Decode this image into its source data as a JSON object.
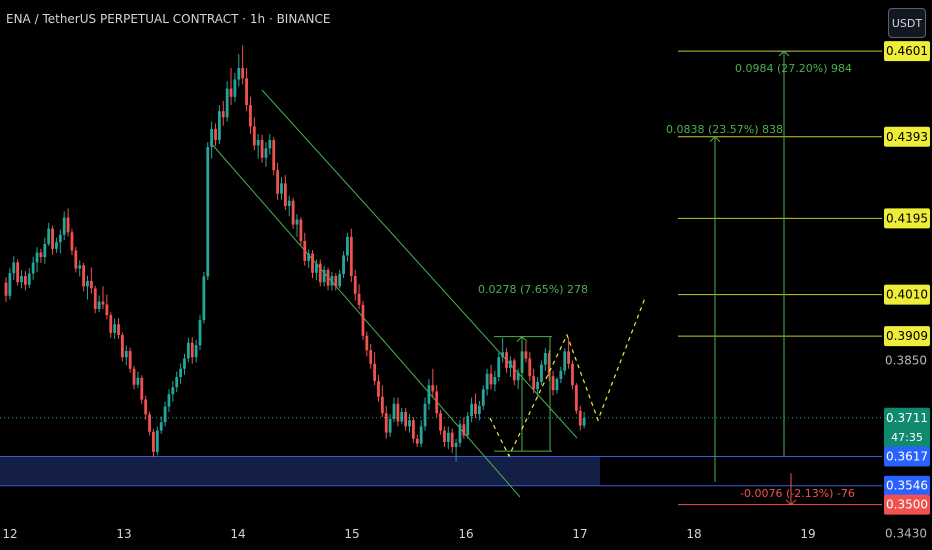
{
  "header": {
    "title": "ENA / TetherUS PERPETUAL CONTRACT · 1h · BINANCE"
  },
  "toolbar": {
    "currency_button": "USDT"
  },
  "colors": {
    "up": "#26a69a",
    "down": "#ef5350",
    "level_line": "#c8c832",
    "measure": "#4caf50",
    "zone": "#1b2a5e",
    "price_label": "#eded3a"
  },
  "chart_data": {
    "type": "candlestick",
    "x_ticks": [
      "12",
      "13",
      "14",
      "15",
      "16",
      "17",
      "18",
      "19"
    ],
    "price_labels": [
      {
        "value": "0.4601",
        "style": "level"
      },
      {
        "value": "0.4393",
        "style": "level"
      },
      {
        "value": "0.4195",
        "style": "level"
      },
      {
        "value": "0.4010",
        "style": "level"
      },
      {
        "value": "0.3909",
        "style": "level"
      },
      {
        "value": "0.3850",
        "style": "axis"
      },
      {
        "value": "0.3711",
        "style": "current"
      },
      {
        "value": "0.3617",
        "style": "zone"
      },
      {
        "value": "0.3546",
        "style": "zone"
      },
      {
        "value": "0.3500",
        "style": "stop"
      },
      {
        "value": "0.3430",
        "style": "axis"
      }
    ],
    "countdown": "47:35",
    "ylim": [
      0.339,
      0.4725
    ],
    "level_lines": [
      0.4601,
      0.4393,
      0.4195,
      0.401,
      0.3909
    ],
    "zone": [
      0.3546,
      0.3617
    ],
    "stop_line": 0.35,
    "current_price": 0.3711,
    "measurements": [
      {
        "label": "0.0984 (27.20%) 984",
        "from": 0.3617,
        "to": 0.4601,
        "direction": "up"
      },
      {
        "label": "0.0838 (23.57%) 838",
        "from": 0.3555,
        "to": 0.4393,
        "direction": "up"
      },
      {
        "label": "0.0278 (7.65%) 278",
        "from": 0.363,
        "to": 0.3908,
        "direction": "up"
      },
      {
        "label": "-0.0076 (-2.13%) -76",
        "from": 0.3576,
        "to": 0.35,
        "direction": "down"
      }
    ],
    "candles_ohlc": [
      [
        0.4039,
        0.4052,
        0.3992,
        0.4007
      ],
      [
        0.4007,
        0.4075,
        0.3998,
        0.4062
      ],
      [
        0.4062,
        0.4103,
        0.4045,
        0.4088
      ],
      [
        0.4088,
        0.4095,
        0.4032,
        0.404
      ],
      [
        0.404,
        0.4069,
        0.4025,
        0.4055
      ],
      [
        0.4055,
        0.4067,
        0.402,
        0.4034
      ],
      [
        0.4034,
        0.4074,
        0.4026,
        0.4061
      ],
      [
        0.4061,
        0.4102,
        0.4046,
        0.4088
      ],
      [
        0.4088,
        0.4125,
        0.4064,
        0.4112
      ],
      [
        0.4112,
        0.4121,
        0.4087,
        0.4101
      ],
      [
        0.4101,
        0.4148,
        0.4085,
        0.4133
      ],
      [
        0.4133,
        0.4184,
        0.4128,
        0.417
      ],
      [
        0.417,
        0.4177,
        0.4107,
        0.4121
      ],
      [
        0.4121,
        0.4148,
        0.4111,
        0.4137
      ],
      [
        0.4137,
        0.4168,
        0.411,
        0.4155
      ],
      [
        0.4155,
        0.4212,
        0.4142,
        0.4197
      ],
      [
        0.4197,
        0.4219,
        0.4151,
        0.4161
      ],
      [
        0.4161,
        0.417,
        0.4106,
        0.4117
      ],
      [
        0.4117,
        0.4126,
        0.4064,
        0.4073
      ],
      [
        0.4073,
        0.4093,
        0.4054,
        0.4081
      ],
      [
        0.4081,
        0.4087,
        0.4018,
        0.403
      ],
      [
        0.403,
        0.4056,
        0.3998,
        0.4043
      ],
      [
        0.4043,
        0.4076,
        0.4012,
        0.4025
      ],
      [
        0.4025,
        0.4031,
        0.3965,
        0.3975
      ],
      [
        0.3975,
        0.4008,
        0.3967,
        0.3993
      ],
      [
        0.3993,
        0.403,
        0.3975,
        0.3986
      ],
      [
        0.3986,
        0.401,
        0.395,
        0.396
      ],
      [
        0.396,
        0.3967,
        0.3905,
        0.3917
      ],
      [
        0.3917,
        0.3952,
        0.3902,
        0.3938
      ],
      [
        0.3938,
        0.3953,
        0.3902,
        0.3912
      ],
      [
        0.3912,
        0.3918,
        0.3848,
        0.3858
      ],
      [
        0.3858,
        0.3886,
        0.3838,
        0.3873
      ],
      [
        0.3873,
        0.3881,
        0.382,
        0.383
      ],
      [
        0.383,
        0.3837,
        0.378,
        0.3791
      ],
      [
        0.3791,
        0.3823,
        0.3783,
        0.3808
      ],
      [
        0.3808,
        0.3814,
        0.3745,
        0.3755
      ],
      [
        0.3755,
        0.3764,
        0.3706,
        0.3719
      ],
      [
        0.3719,
        0.3726,
        0.3668,
        0.3677
      ],
      [
        0.3677,
        0.3684,
        0.3615,
        0.3628
      ],
      [
        0.3628,
        0.369,
        0.362,
        0.368
      ],
      [
        0.368,
        0.3714,
        0.3672,
        0.37
      ],
      [
        0.37,
        0.375,
        0.369,
        0.3738
      ],
      [
        0.3738,
        0.378,
        0.3725,
        0.3768
      ],
      [
        0.3768,
        0.38,
        0.375,
        0.3785
      ],
      [
        0.3785,
        0.3823,
        0.3773,
        0.381
      ],
      [
        0.381,
        0.3843,
        0.3793,
        0.383
      ],
      [
        0.383,
        0.3866,
        0.3815,
        0.3855
      ],
      [
        0.3855,
        0.3905,
        0.3846,
        0.3893
      ],
      [
        0.3893,
        0.3907,
        0.3842,
        0.3858
      ],
      [
        0.3858,
        0.39,
        0.3845,
        0.3887
      ],
      [
        0.3887,
        0.396,
        0.3875,
        0.3948
      ],
      [
        0.3948,
        0.4065,
        0.394,
        0.4054
      ],
      [
        0.4054,
        0.438,
        0.4045,
        0.4368
      ],
      [
        0.4368,
        0.443,
        0.434,
        0.4412
      ],
      [
        0.4412,
        0.4425,
        0.437,
        0.4385
      ],
      [
        0.4385,
        0.447,
        0.4375,
        0.4455
      ],
      [
        0.4455,
        0.448,
        0.442,
        0.444
      ],
      [
        0.444,
        0.4528,
        0.443,
        0.451
      ],
      [
        0.451,
        0.456,
        0.447,
        0.449
      ],
      [
        0.449,
        0.4548,
        0.4478,
        0.4532
      ],
      [
        0.4532,
        0.4594,
        0.4515,
        0.456
      ],
      [
        0.456,
        0.4615,
        0.452,
        0.4535
      ],
      [
        0.4535,
        0.456,
        0.4455,
        0.447
      ],
      [
        0.447,
        0.449,
        0.44,
        0.4418
      ],
      [
        0.4418,
        0.444,
        0.436,
        0.4372
      ],
      [
        0.4372,
        0.44,
        0.434,
        0.4385
      ],
      [
        0.4385,
        0.4398,
        0.433,
        0.4342
      ],
      [
        0.4342,
        0.438,
        0.432,
        0.4365
      ],
      [
        0.4365,
        0.44,
        0.435,
        0.4385
      ],
      [
        0.4385,
        0.4392,
        0.43,
        0.4312
      ],
      [
        0.4312,
        0.433,
        0.424,
        0.4255
      ],
      [
        0.4255,
        0.4295,
        0.424,
        0.428
      ],
      [
        0.428,
        0.43,
        0.4215,
        0.4225
      ],
      [
        0.4225,
        0.425,
        0.42,
        0.4238
      ],
      [
        0.4238,
        0.4245,
        0.417,
        0.418
      ],
      [
        0.418,
        0.4205,
        0.415,
        0.4192
      ],
      [
        0.4192,
        0.4198,
        0.413,
        0.414
      ],
      [
        0.414,
        0.416,
        0.408,
        0.4092
      ],
      [
        0.4092,
        0.412,
        0.4075,
        0.411
      ],
      [
        0.411,
        0.4118,
        0.405,
        0.4063
      ],
      [
        0.4063,
        0.4095,
        0.4045,
        0.4085
      ],
      [
        0.4085,
        0.4095,
        0.403,
        0.404
      ],
      [
        0.404,
        0.408,
        0.403,
        0.407
      ],
      [
        0.407,
        0.4075,
        0.402,
        0.4032
      ],
      [
        0.4032,
        0.4065,
        0.402,
        0.4055
      ],
      [
        0.4055,
        0.4062,
        0.402,
        0.403
      ],
      [
        0.403,
        0.407,
        0.4025,
        0.406
      ],
      [
        0.406,
        0.4115,
        0.405,
        0.4105
      ],
      [
        0.4105,
        0.416,
        0.409,
        0.415
      ],
      [
        0.415,
        0.417,
        0.404,
        0.4055
      ],
      [
        0.4055,
        0.407,
        0.3995,
        0.4012
      ],
      [
        0.4012,
        0.4035,
        0.3975,
        0.3985
      ],
      [
        0.3985,
        0.3995,
        0.39,
        0.391
      ],
      [
        0.391,
        0.392,
        0.386,
        0.3875
      ],
      [
        0.3875,
        0.389,
        0.383,
        0.3842
      ],
      [
        0.3842,
        0.387,
        0.379,
        0.38
      ],
      [
        0.38,
        0.3815,
        0.375,
        0.3762
      ],
      [
        0.3762,
        0.379,
        0.3712,
        0.3722
      ],
      [
        0.3722,
        0.374,
        0.366,
        0.3675
      ],
      [
        0.3675,
        0.372,
        0.3665,
        0.3708
      ],
      [
        0.3708,
        0.376,
        0.37,
        0.3745
      ],
      [
        0.3745,
        0.376,
        0.369,
        0.3702
      ],
      [
        0.3702,
        0.3735,
        0.3695,
        0.3725
      ],
      [
        0.3725,
        0.3735,
        0.368,
        0.369
      ],
      [
        0.369,
        0.372,
        0.3675,
        0.3705
      ],
      [
        0.3705,
        0.3712,
        0.365,
        0.366
      ],
      [
        0.366,
        0.367,
        0.364,
        0.3648
      ],
      [
        0.3648,
        0.3705,
        0.364,
        0.369
      ],
      [
        0.369,
        0.376,
        0.368,
        0.3745
      ],
      [
        0.3745,
        0.3805,
        0.373,
        0.379
      ],
      [
        0.379,
        0.383,
        0.376,
        0.3775
      ],
      [
        0.3775,
        0.379,
        0.371,
        0.3722
      ],
      [
        0.3722,
        0.373,
        0.367,
        0.368
      ],
      [
        0.368,
        0.369,
        0.364,
        0.3652
      ],
      [
        0.3652,
        0.369,
        0.3635,
        0.3675
      ],
      [
        0.3675,
        0.3685,
        0.3625,
        0.364
      ],
      [
        0.364,
        0.366,
        0.3605,
        0.365
      ],
      [
        0.365,
        0.3705,
        0.364,
        0.3695
      ],
      [
        0.3695,
        0.3712,
        0.366,
        0.3668
      ],
      [
        0.3668,
        0.3725,
        0.366,
        0.3715
      ],
      [
        0.3715,
        0.376,
        0.37,
        0.3745
      ],
      [
        0.3745,
        0.377,
        0.371,
        0.372
      ],
      [
        0.372,
        0.3752,
        0.3705,
        0.374
      ],
      [
        0.374,
        0.379,
        0.373,
        0.378
      ],
      [
        0.378,
        0.383,
        0.3765,
        0.3818
      ],
      [
        0.3818,
        0.384,
        0.378,
        0.3792
      ],
      [
        0.3792,
        0.3825,
        0.3775,
        0.381
      ],
      [
        0.381,
        0.387,
        0.38,
        0.3858
      ],
      [
        0.3858,
        0.3905,
        0.3845,
        0.387
      ],
      [
        0.387,
        0.388,
        0.382,
        0.3832
      ],
      [
        0.3832,
        0.386,
        0.381,
        0.385
      ],
      [
        0.385,
        0.3855,
        0.379,
        0.3802
      ],
      [
        0.3802,
        0.383,
        0.378,
        0.382
      ],
      [
        0.382,
        0.388,
        0.381,
        0.3872
      ],
      [
        0.3872,
        0.3895,
        0.3845,
        0.3855
      ],
      [
        0.3855,
        0.387,
        0.38,
        0.3812
      ],
      [
        0.3812,
        0.383,
        0.377,
        0.378
      ],
      [
        0.378,
        0.381,
        0.376,
        0.3798
      ],
      [
        0.3798,
        0.385,
        0.379,
        0.384
      ],
      [
        0.384,
        0.388,
        0.3825,
        0.3868
      ],
      [
        0.3868,
        0.3875,
        0.38,
        0.3812
      ],
      [
        0.3812,
        0.3825,
        0.3765,
        0.3778
      ],
      [
        0.3778,
        0.381,
        0.377,
        0.3805
      ],
      [
        0.3805,
        0.3835,
        0.3795,
        0.3825
      ],
      [
        0.3825,
        0.388,
        0.3815,
        0.3872
      ],
      [
        0.3872,
        0.3905,
        0.383,
        0.3842
      ],
      [
        0.3842,
        0.385,
        0.378,
        0.379
      ],
      [
        0.379,
        0.3795,
        0.372,
        0.3728
      ],
      [
        0.3728,
        0.374,
        0.368,
        0.3692
      ],
      [
        0.3692,
        0.3725,
        0.3685,
        0.3711
      ]
    ]
  }
}
